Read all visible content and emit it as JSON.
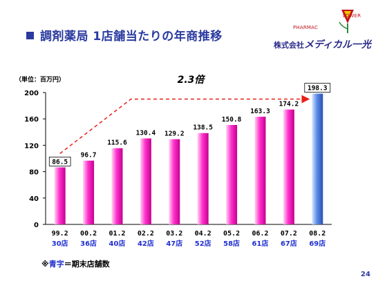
{
  "header": {
    "title": "調剤薬局 1店舗当たりの年商推移"
  },
  "logo": {
    "pharmac": "PHARMAC",
    "lower": "LOWER",
    "company_prefix": "株式会社",
    "company_brand": "メディカル一光"
  },
  "chart_data": {
    "type": "bar",
    "unit_label": "（単位：百万円）",
    "categories": [
      "99.2",
      "00.2",
      "01.2",
      "02.2",
      "03.2",
      "04.2",
      "05.2",
      "06.2",
      "07.2",
      "08.2"
    ],
    "store_counts": [
      "30店",
      "36店",
      "40店",
      "42店",
      "47店",
      "52店",
      "58店",
      "61店",
      "67店",
      "69店"
    ],
    "values": [
      86.5,
      96.7,
      115.6,
      130.4,
      129.2,
      138.5,
      150.8,
      163.3,
      174.2,
      198.3
    ],
    "value_labels": [
      "86.5",
      "96.7",
      "115.6",
      "130.4",
      "129.2",
      "138.5",
      "150.8",
      "163.3",
      "174.2",
      "198.3"
    ],
    "boxed_labels": [
      0,
      9
    ],
    "highlight_index": 9,
    "ylim": [
      0,
      200
    ],
    "yticks": [
      "0",
      "40",
      "80",
      "120",
      "160",
      "200"
    ],
    "ytick_values": [
      0,
      40,
      80,
      120,
      160,
      200
    ],
    "growth_annotation": "2.3倍",
    "colors": {
      "bar": "#ff33cc",
      "highlight_bar": "#5b8ee8",
      "arrow": "#e8201a",
      "store_count_text": "#1f2fd0"
    }
  },
  "footnote": {
    "mark": "※",
    "blue": "青字",
    "rest": "＝期末店舗数"
  },
  "page_number": "24"
}
